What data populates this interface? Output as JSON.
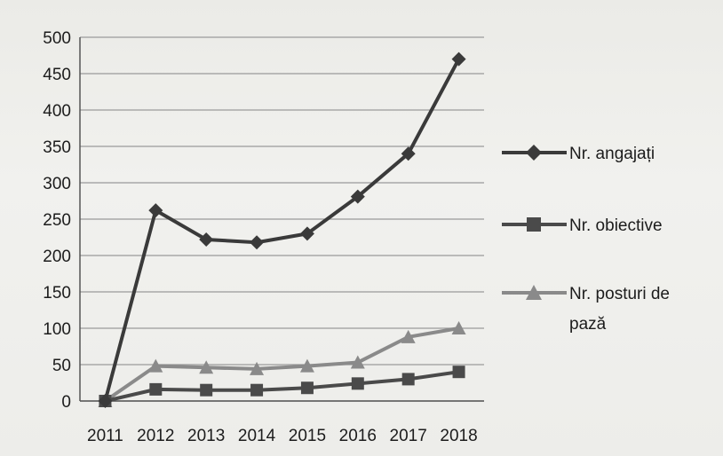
{
  "chart_data": {
    "type": "line",
    "categories": [
      "2011",
      "2012",
      "2013",
      "2014",
      "2015",
      "2016",
      "2017",
      "2018"
    ],
    "ylim": [
      0,
      500
    ],
    "yticks": [
      0,
      50,
      100,
      150,
      200,
      250,
      300,
      350,
      400,
      450,
      500
    ],
    "grid": true,
    "legend_position": "right",
    "series": [
      {
        "name": "Nr. angajați",
        "values": [
          0,
          262,
          222,
          218,
          230,
          281,
          340,
          470
        ],
        "color": "#3a3a3a",
        "marker": "diamond"
      },
      {
        "name": "Nr. obiective",
        "values": [
          0,
          16,
          15,
          15,
          18,
          24,
          30,
          40
        ],
        "color": "#4a4a4a",
        "marker": "square"
      },
      {
        "name": "Nr. posturi de pază",
        "legend_lines": [
          "Nr. posturi de",
          "pază"
        ],
        "values": [
          0,
          48,
          46,
          44,
          48,
          53,
          88,
          100
        ],
        "color": "#8a8a8a",
        "marker": "triangle"
      }
    ]
  }
}
